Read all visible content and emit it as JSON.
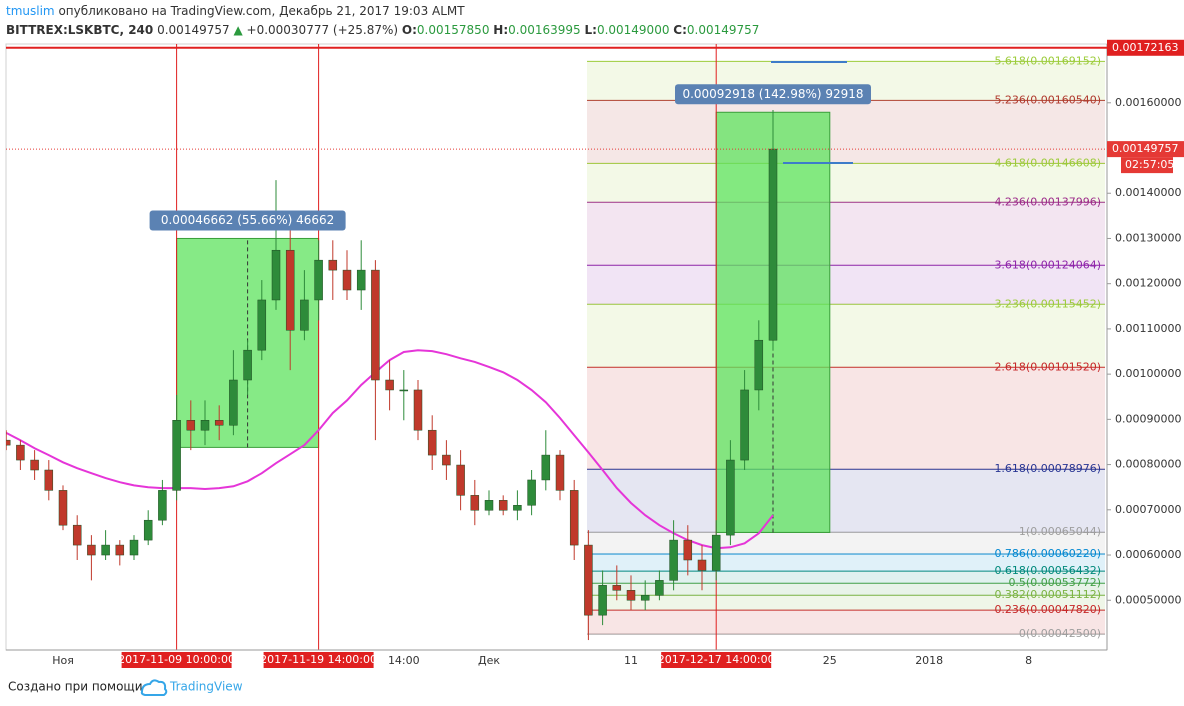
{
  "header": {
    "author": "tmuslim",
    "published": "опубликовано на TradingView.com, Декабрь 21, 2017 19:03 ALMT",
    "symbol": "BITTREX:LSKBTC, 240",
    "last": "0.00149757",
    "arrow": "▲",
    "change": "+0.00030777 (+25.87%)",
    "open_label": "O:",
    "open": "0.00157850",
    "high_label": "H:",
    "high": "0.00163995",
    "low_label": "L:",
    "low": "0.00149000",
    "close_label": "C:",
    "close": "0.00149757"
  },
  "chart_data": {
    "type": "candlestick",
    "categories": [
      null,
      null,
      null,
      null,
      "Ноя",
      null,
      null,
      null,
      null,
      null,
      null,
      null,
      "2017-11-09 10:00:00",
      null,
      null,
      null,
      null,
      null,
      null,
      null,
      null,
      null,
      "2017-11-19 14:00:00",
      null,
      null,
      null,
      null,
      null,
      "14:00",
      null,
      null,
      null,
      null,
      null,
      "Дек",
      null,
      null,
      null,
      null,
      null,
      null,
      null,
      null,
      null,
      "11",
      null,
      null,
      null,
      null,
      null,
      "2017-12-17 14:00:00",
      null,
      null,
      null,
      null,
      null,
      null,
      null,
      "25",
      null,
      null,
      null,
      null,
      null,
      null,
      "2018",
      null,
      null,
      null,
      null,
      null,
      null,
      "8",
      null,
      null,
      null,
      null,
      null
    ],
    "open": [
      0.000854,
      0.000843,
      0.00081,
      0.000788,
      0.000743,
      0.000666,
      0.000622,
      0.0006,
      0.000622,
      0.0006,
      0.000633,
      0.000677,
      0.000743,
      0.000898,
      0.000876,
      0.000898,
      0.000887,
      0.000987,
      0.001053,
      0.001164,
      0.001274,
      0.001097,
      0.001164,
      0.001252,
      0.00123,
      0.001186,
      0.00123,
      0.000987,
      0.000965,
      0.000965,
      0.000876,
      0.000821,
      0.000799,
      0.000732,
      0.000699,
      0.000721,
      0.000699,
      0.00071,
      0.000766,
      0.000821,
      0.000743,
      0.000622,
      0.000467,
      0.000533,
      0.000522,
      0.0005,
      0.000511,
      0.000544,
      0.000633,
      0.000589,
      0.000566,
      0.000644,
      0.00081,
      0.000965,
      0.001075,
      null,
      null,
      null,
      null,
      null,
      null,
      null,
      null,
      null,
      null,
      null,
      null,
      null,
      null,
      null,
      null,
      null,
      null,
      null,
      null,
      null,
      null,
      null
    ],
    "high": [
      0.000876,
      0.000854,
      0.000832,
      0.00081,
      0.000754,
      0.000688,
      0.000644,
      0.000655,
      0.000633,
      0.000644,
      0.000699,
      0.000766,
      0.000954,
      0.000942,
      0.000942,
      0.000931,
      0.001053,
      0.001075,
      0.001208,
      0.001429,
      0.001319,
      0.00123,
      0.001296,
      0.001296,
      0.001274,
      0.001296,
      0.001252,
      0.001031,
      0.001009,
      0.000987,
      0.000909,
      0.000854,
      0.000832,
      0.000766,
      0.000743,
      0.000732,
      0.000743,
      0.000788,
      0.000876,
      0.000832,
      0.000766,
      0.000655,
      0.000566,
      0.000577,
      0.000555,
      0.000544,
      0.000566,
      0.000677,
      0.000666,
      0.000622,
      0.000677,
      0.000854,
      0.001009,
      0.001119,
      0.001584,
      null,
      null,
      null,
      null,
      null,
      null,
      null,
      null,
      null,
      null,
      null,
      null,
      null,
      null,
      null,
      null,
      null,
      null,
      null,
      null,
      null,
      null,
      null
    ],
    "low": [
      0.000832,
      0.000788,
      0.000766,
      0.000721,
      0.000655,
      0.000589,
      0.000544,
      0.000589,
      0.000577,
      0.000589,
      0.000622,
      0.000666,
      0.000721,
      0.000832,
      0.000843,
      0.000854,
      0.000865,
      0.000954,
      0.001031,
      0.001142,
      0.001009,
      0.001075,
      0.001119,
      0.001164,
      0.001164,
      0.001142,
      0.000854,
      0.00092,
      0.000898,
      0.000854,
      0.000788,
      0.000766,
      0.000699,
      0.000666,
      0.000688,
      0.000688,
      0.000677,
      0.000688,
      0.000743,
      0.000721,
      0.000589,
      0.000412,
      0.000445,
      0.0005,
      0.000478,
      0.000478,
      0.0005,
      0.000522,
      0.000555,
      0.000522,
      0.000544,
      0.000622,
      0.000788,
      0.00092,
      0.001053,
      null,
      null,
      null,
      null,
      null,
      null,
      null,
      null,
      null,
      null,
      null,
      null,
      null,
      null,
      null,
      null,
      null,
      null,
      null,
      null,
      null,
      null,
      null
    ],
    "close": [
      0.000843,
      0.00081,
      0.000788,
      0.000743,
      0.000666,
      0.000622,
      0.0006,
      0.000622,
      0.0006,
      0.000633,
      0.000677,
      0.000743,
      0.000898,
      0.000876,
      0.000898,
      0.000887,
      0.000987,
      0.001053,
      0.001164,
      0.001274,
      0.001097,
      0.001164,
      0.001252,
      0.00123,
      0.001186,
      0.00123,
      0.000987,
      0.000965,
      0.000965,
      0.000876,
      0.000821,
      0.000799,
      0.000732,
      0.000699,
      0.000721,
      0.000699,
      0.00071,
      0.000766,
      0.000821,
      0.000743,
      0.000622,
      0.000467,
      0.000533,
      0.000522,
      0.0005,
      0.000511,
      0.000544,
      0.000633,
      0.000589,
      0.000566,
      0.000644,
      0.00081,
      0.000965,
      0.001075,
      0.00149757,
      null,
      null,
      null,
      null,
      null,
      null,
      null,
      null,
      null,
      null,
      null,
      null,
      null,
      null,
      null,
      null,
      null,
      null,
      null,
      null,
      null,
      null,
      null
    ],
    "up_color": "#2e8b3a",
    "down_color": "#c0392b",
    "moving_average": {
      "color": "#e535d8",
      "values": [
        0.00087,
        0.000854,
        0.000836,
        0.000821,
        0.000805,
        0.000792,
        0.000781,
        0.00077,
        0.000761,
        0.000754,
        0.00075,
        0.000748,
        0.000748,
        0.000748,
        0.000746,
        0.000748,
        0.000752,
        0.000763,
        0.000781,
        0.000803,
        0.000823,
        0.000843,
        0.000876,
        0.000914,
        0.000942,
        0.000976,
        0.001004,
        0.001031,
        0.001049,
        0.001053,
        0.001051,
        0.001044,
        0.001035,
        0.001027,
        0.001016,
        0.001004,
        0.000987,
        0.000965,
        0.000938,
        0.000903,
        0.000865,
        0.000827,
        0.000788,
        0.000748,
        0.000715,
        0.000688,
        0.000666,
        0.000648,
        0.000633,
        0.000622,
        0.000615,
        0.000617,
        0.000626,
        0.000648,
        0.000688,
        null,
        null,
        null,
        null,
        null,
        null,
        null,
        null,
        null,
        null,
        null,
        null,
        null,
        null,
        null,
        null,
        null,
        null,
        null,
        null,
        null,
        null,
        null
      ]
    },
    "ylim": [
      0.00039,
      0.00173
    ],
    "yticks": [
      {
        "value": 0.0005,
        "label": "0.00050000"
      },
      {
        "value": 0.0006,
        "label": "0.00060000"
      },
      {
        "value": 0.0007,
        "label": "0.00070000"
      },
      {
        "value": 0.0008,
        "label": "0.00080000"
      },
      {
        "value": 0.0009,
        "label": "0.00090000"
      },
      {
        "value": 0.001,
        "label": "0.00100000"
      },
      {
        "value": 0.0011,
        "label": "0.00110000"
      },
      {
        "value": 0.0012,
        "label": "0.00120000"
      },
      {
        "value": 0.0013,
        "label": "0.00130000"
      },
      {
        "value": 0.0014,
        "label": "0.00140000"
      },
      {
        "value": 0.0015,
        "label": "0.00150000"
      },
      {
        "value": 0.0016,
        "label": "0.00160000"
      }
    ],
    "grid": false,
    "high_line": {
      "value": 0.00172163,
      "label": "0.00172163",
      "color": "#e02020"
    },
    "last_price": {
      "value": 0.00149757,
      "label": "0.00149757",
      "timer": "02:57:05",
      "color": "#e53935"
    },
    "measures": [
      {
        "label": "0.00046662 (55.66%) 46662",
        "from": 0.000838,
        "to": 0.0013
      },
      {
        "label": "0.00092918 (142.98%) 92918",
        "from": 0.00064987,
        "to": 0.00157905
      }
    ],
    "fib_levels": [
      {
        "value": 0.000425,
        "label": "0(0.00042500)",
        "color": "#9e9e9e"
      },
      {
        "value": 0.0004782,
        "label": "0.236(0.00047820)",
        "color": "#c62828"
      },
      {
        "value": 0.00051112,
        "label": "0.382(0.00051112)",
        "color": "#7cb342"
      },
      {
        "value": 0.00053772,
        "label": "0.5(0.00053772)",
        "color": "#43a047"
      },
      {
        "value": 0.00056432,
        "label": "0.618(0.00056432)",
        "color": "#00897b"
      },
      {
        "value": 0.0006022,
        "label": "0.786(0.00060220)",
        "color": "#0288d1"
      },
      {
        "value": 0.00065044,
        "label": "1(0.00065044)",
        "color": "#9e9e9e"
      },
      {
        "value": 0.00078976,
        "label": "1.618(0.00078976)",
        "color": "#283593"
      },
      {
        "value": 0.0010152,
        "label": "2.618(0.00101520)",
        "color": "#c62828"
      },
      {
        "value": 0.00115452,
        "label": "3.236(0.00115452)",
        "color": "#9ccc3a"
      },
      {
        "value": 0.00124064,
        "label": "3.618(0.00124064)",
        "color": "#8e24aa"
      },
      {
        "value": 0.00137996,
        "label": "4.236(0.00137996)",
        "color": "#9c2a8a"
      },
      {
        "value": 0.00146608,
        "label": "4.618(0.00146608)",
        "color": "#9ccc3a"
      },
      {
        "value": 0.0016054,
        "label": "5.236(0.00160540)",
        "color": "#b03a2e"
      },
      {
        "value": 0.00169152,
        "label": "5.618(0.00169152)",
        "color": "#9ccc3a"
      }
    ]
  },
  "footer": {
    "text": "Создано при помощи",
    "brand": "TradingView"
  }
}
